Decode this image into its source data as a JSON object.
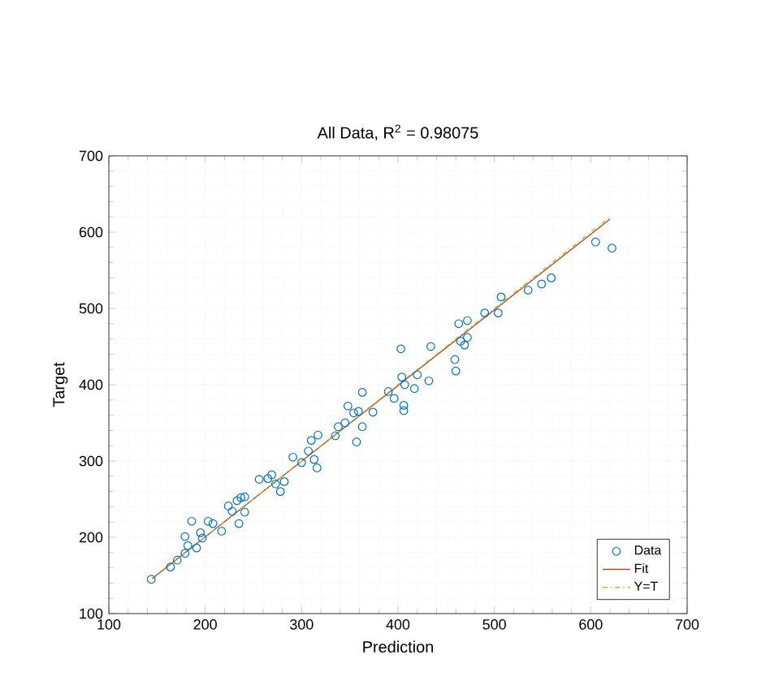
{
  "chart_data": {
    "type": "scatter",
    "title": "All Data, R$^{2}$ = 0.98075",
    "xlabel": "Prediction",
    "ylabel": "Target",
    "xlim": [
      100,
      700
    ],
    "ylim": [
      100,
      700
    ],
    "xticks": [
      100,
      200,
      300,
      400,
      500,
      600,
      700
    ],
    "yticks": [
      100,
      200,
      300,
      400,
      500,
      600,
      700
    ],
    "grid": true,
    "legend": "bottom right",
    "series": [
      {
        "name": "Data",
        "marker": "circle",
        "color": "#0072bd",
        "x": [
          144,
          164,
          171,
          179,
          179,
          186,
          182,
          191,
          195,
          197,
          203,
          208,
          217,
          224,
          228,
          233,
          237,
          241,
          235,
          241,
          256,
          265,
          269,
          273,
          278,
          282,
          291,
          300,
          307,
          310,
          313,
          316,
          317,
          335,
          338,
          345,
          348,
          354,
          357,
          359,
          363,
          363,
          374,
          390,
          396,
          403,
          404,
          406,
          406,
          407,
          417,
          420,
          432,
          434,
          459,
          460,
          463,
          465,
          469,
          472,
          472,
          490,
          504,
          507,
          535,
          549,
          559,
          605,
          622
        ],
        "values": [
          145,
          161,
          170,
          179,
          201,
          221,
          189,
          186,
          206,
          199,
          221,
          218,
          208,
          241,
          234,
          248,
          252,
          253,
          218,
          233,
          276,
          277,
          282,
          270,
          260,
          273,
          305,
          298,
          313,
          327,
          302,
          291,
          334,
          333,
          345,
          350,
          372,
          363,
          325,
          365,
          345,
          390,
          364,
          391,
          382,
          447,
          410,
          373,
          366,
          400,
          395,
          413,
          405,
          450,
          433,
          418,
          480,
          457,
          452,
          484,
          462,
          494,
          494,
          515,
          524,
          532,
          540,
          587,
          579
        ]
      },
      {
        "name": "Fit",
        "type": "line",
        "marker": "none",
        "line_style": "solid",
        "color": "#a0522d",
        "x": [
          145,
          620
        ],
        "values": [
          146,
          617
        ]
      },
      {
        "name": "Y=T",
        "type": "line",
        "marker": "none",
        "line_style": "dashdot",
        "color": "#d4b030",
        "x": [
          145,
          620
        ],
        "values": [
          145,
          620
        ]
      }
    ]
  }
}
